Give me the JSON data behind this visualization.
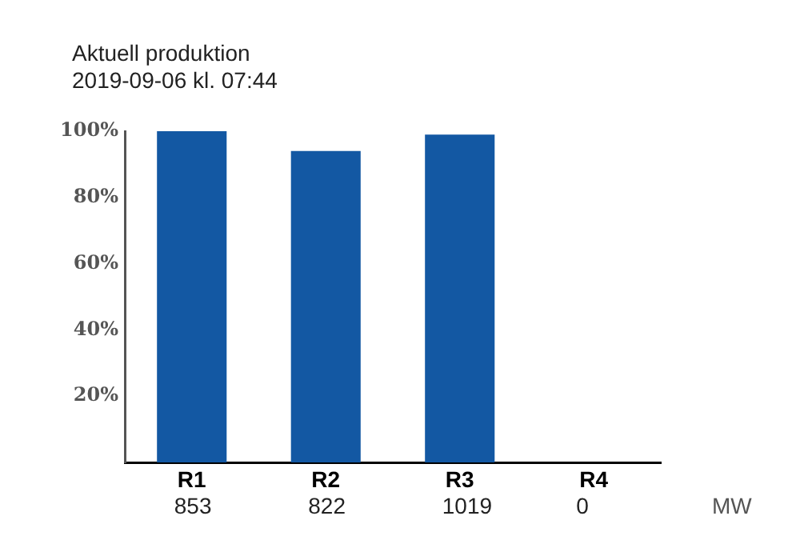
{
  "chart_data": {
    "type": "bar",
    "title": "Aktuell produktion",
    "subtitle": "2019-09-06 kl. 07:44",
    "categories": [
      "R1",
      "R2",
      "R3",
      "R4"
    ],
    "values": [
      100,
      94,
      99,
      0
    ],
    "color": "#1358a3",
    "ylim": [
      0,
      100
    ],
    "yticks": [
      {
        "value": 20,
        "label": "20%"
      },
      {
        "value": 40,
        "label": "40%"
      },
      {
        "value": 60,
        "label": "60%"
      },
      {
        "value": 80,
        "label": "80%"
      },
      {
        "value": 100,
        "label": "100%"
      }
    ],
    "annotations": [
      "853",
      "822",
      "1019",
      "0",
      "MW"
    ],
    "grid": false,
    "legend": false
  }
}
